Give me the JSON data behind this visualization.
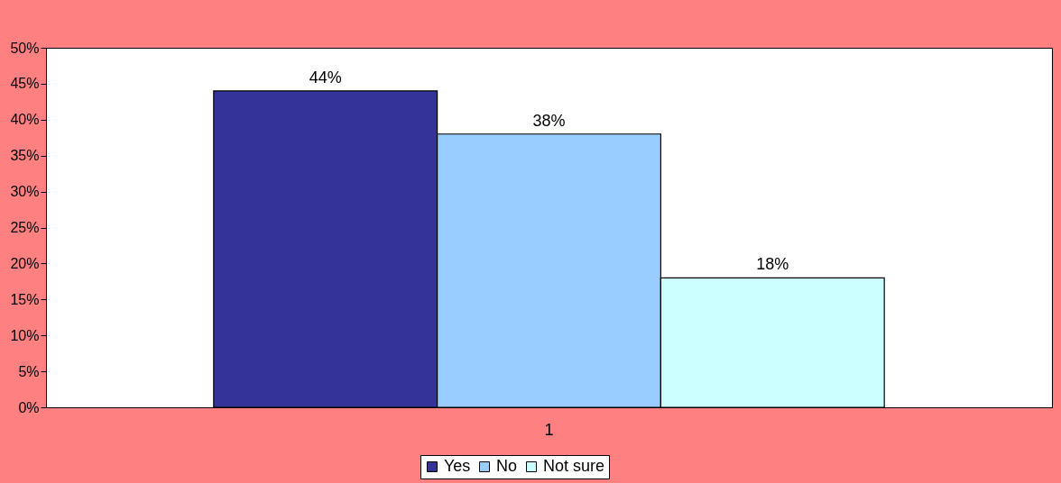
{
  "chart_data": {
    "type": "bar",
    "categories": [
      "1"
    ],
    "series": [
      {
        "name": "Yes",
        "color": "#333399",
        "values": [
          44
        ],
        "value_labels": [
          "44%"
        ]
      },
      {
        "name": "No",
        "color": "#99ccff",
        "values": [
          38
        ],
        "value_labels": [
          "38%"
        ]
      },
      {
        "name": "Not sure",
        "color": "#ccffff",
        "values": [
          18
        ],
        "value_labels": [
          "18%"
        ]
      }
    ],
    "ylim": [
      0,
      50
    ],
    "yticks": [
      {
        "value": 0,
        "label": "0%"
      },
      {
        "value": 5,
        "label": "5%"
      },
      {
        "value": 10,
        "label": "10%"
      },
      {
        "value": 15,
        "label": "15%"
      },
      {
        "value": 20,
        "label": "20%"
      },
      {
        "value": 25,
        "label": "25%"
      },
      {
        "value": 30,
        "label": "30%"
      },
      {
        "value": 35,
        "label": "35%"
      },
      {
        "value": 40,
        "label": "40%"
      },
      {
        "value": 45,
        "label": "45%"
      },
      {
        "value": 50,
        "label": "50%"
      }
    ],
    "grid": false,
    "legend": "bottom"
  }
}
